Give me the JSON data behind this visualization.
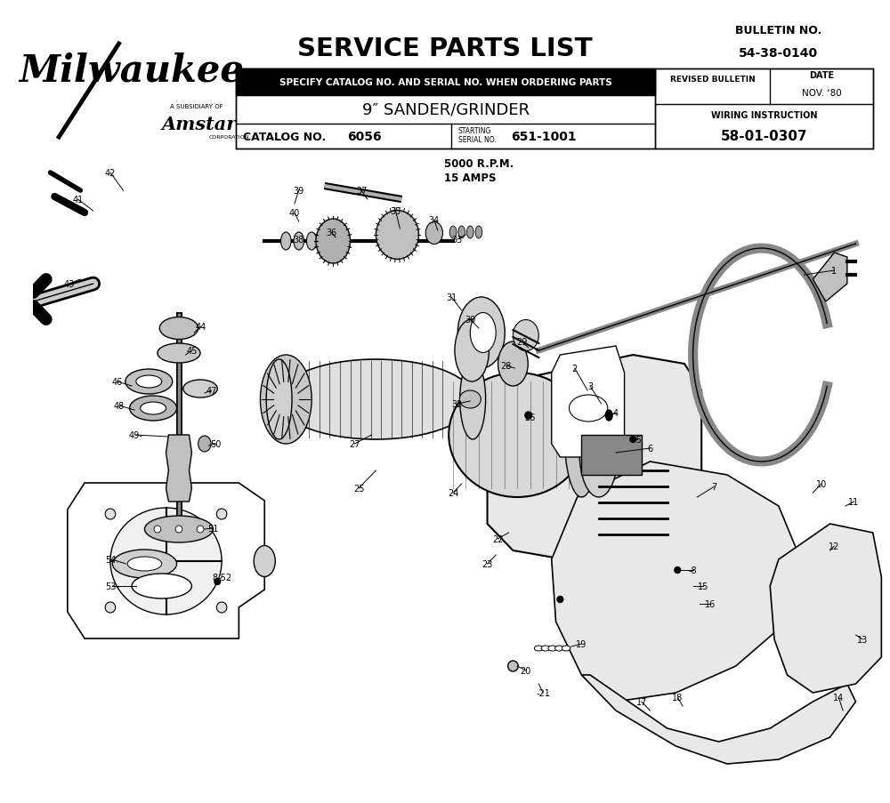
{
  "title": "SERVICE PARTS LIST",
  "bulletin_no_label": "BULLETIN NO.",
  "bulletin_no": "54-38-0140",
  "catalog_label": "CATALOG NO.",
  "catalog_no": "6056",
  "starting_serial_label_1": "STARTING",
  "starting_serial_label_2": "SERIAL NO.",
  "starting_serial": "651-1001",
  "product_name": "9″ SANDER/GRINDER",
  "specify_text": "SPECIFY CATALOG NO. AND SERIAL NO. WHEN ORDERING PARTS",
  "revised_bulletin_label": "REVISED BULLETIN",
  "date_label": "DATE",
  "date_value": "NOV. ‘80",
  "wiring_label": "WIRING INSTRUCTION",
  "wiring_no": "58-01-0307",
  "specs_line1": "5000 R.P.M.",
  "specs_line2": "15 AMPS",
  "bg_color": "#ffffff",
  "text_color": "#000000",
  "fig_width": 10.0,
  "fig_height": 9.04,
  "dpi": 100
}
